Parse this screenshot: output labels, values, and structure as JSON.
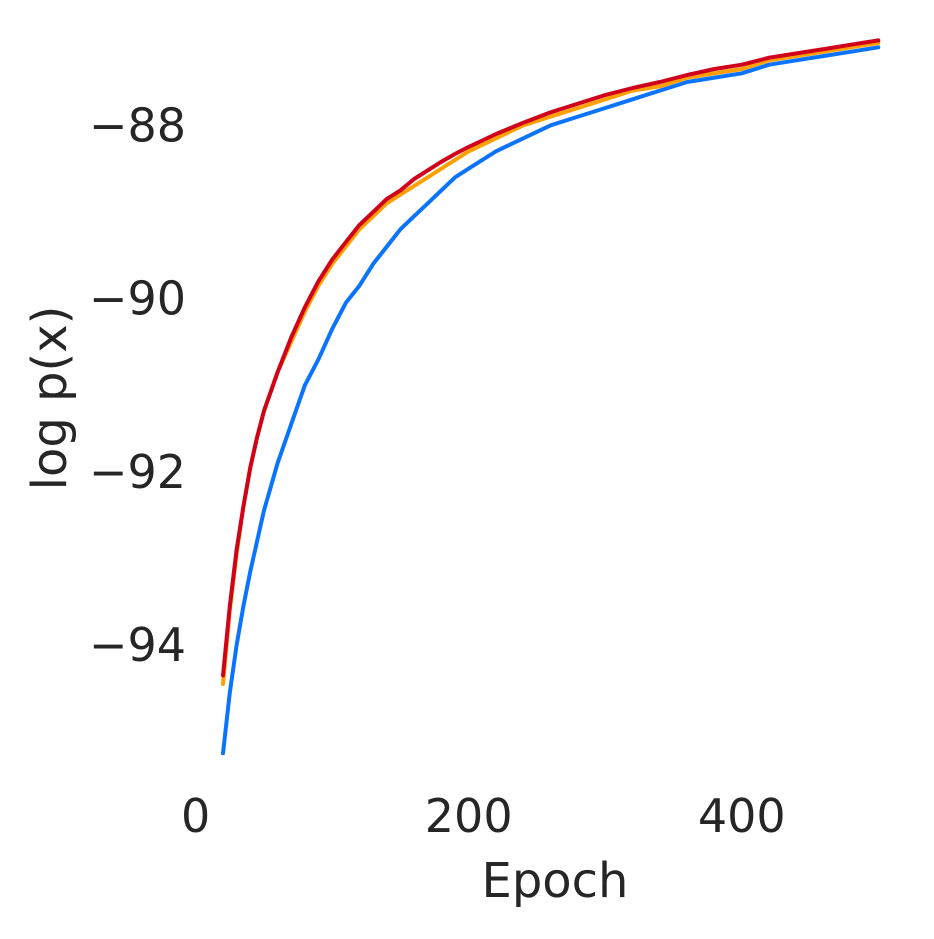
{
  "chart_data": {
    "type": "line",
    "title": "",
    "xlabel": "Epoch",
    "ylabel": "log p(x)",
    "xlim": [
      -10,
      510
    ],
    "ylim": [
      -95.5,
      -86.9
    ],
    "xticks": [
      0,
      200,
      400
    ],
    "xtick_labels": [
      "0",
      "200",
      "400"
    ],
    "yticks": [
      -88,
      -90,
      -92,
      -94
    ],
    "ytick_labels": [
      "−88",
      "−90",
      "−92",
      "−94"
    ],
    "grid": false,
    "legend": "none",
    "series": [
      {
        "color": "#0a74ff",
        "x": [
          20,
          25,
          30,
          35,
          40,
          45,
          50,
          60,
          70,
          80,
          90,
          100,
          110,
          120,
          130,
          140,
          150,
          160,
          170,
          180,
          190,
          200,
          220,
          240,
          260,
          280,
          300,
          320,
          340,
          360,
          380,
          400,
          420,
          440,
          460,
          480,
          500
        ],
        "y": [
          -95.25,
          -94.55,
          -94.0,
          -93.55,
          -93.15,
          -92.8,
          -92.45,
          -91.9,
          -91.45,
          -91.0,
          -90.7,
          -90.35,
          -90.05,
          -89.85,
          -89.6,
          -89.4,
          -89.2,
          -89.05,
          -88.9,
          -88.75,
          -88.6,
          -88.5,
          -88.3,
          -88.15,
          -88.0,
          -87.9,
          -87.8,
          -87.7,
          -87.6,
          -87.5,
          -87.45,
          -87.4,
          -87.3,
          -87.25,
          -87.2,
          -87.15,
          -87.1
        ]
      },
      {
        "color": "#ffa000",
        "x": [
          20,
          25,
          30,
          35,
          40,
          45,
          50,
          60,
          70,
          80,
          90,
          100,
          110,
          120,
          130,
          140,
          150,
          160,
          170,
          180,
          190,
          200,
          220,
          240,
          260,
          280,
          300,
          320,
          340,
          360,
          380,
          400,
          420,
          440,
          460,
          480,
          500
        ],
        "y": [
          -94.45,
          -93.6,
          -92.95,
          -92.4,
          -91.95,
          -91.6,
          -91.3,
          -90.85,
          -90.5,
          -90.15,
          -89.85,
          -89.6,
          -89.4,
          -89.2,
          -89.05,
          -88.9,
          -88.8,
          -88.7,
          -88.6,
          -88.5,
          -88.4,
          -88.3,
          -88.15,
          -88.0,
          -87.9,
          -87.8,
          -87.7,
          -87.6,
          -87.55,
          -87.45,
          -87.4,
          -87.35,
          -87.25,
          -87.2,
          -87.15,
          -87.1,
          -87.05
        ]
      },
      {
        "color": "#d0021b",
        "x": [
          20,
          25,
          30,
          35,
          40,
          45,
          50,
          60,
          70,
          80,
          90,
          100,
          110,
          120,
          130,
          140,
          150,
          160,
          170,
          180,
          190,
          200,
          220,
          240,
          260,
          280,
          300,
          320,
          340,
          360,
          380,
          400,
          420,
          440,
          460,
          480,
          500
        ],
        "y": [
          -94.35,
          -93.55,
          -92.9,
          -92.4,
          -91.95,
          -91.6,
          -91.3,
          -90.85,
          -90.45,
          -90.1,
          -89.8,
          -89.55,
          -89.35,
          -89.15,
          -89.0,
          -88.85,
          -88.75,
          -88.62,
          -88.52,
          -88.42,
          -88.33,
          -88.25,
          -88.1,
          -87.97,
          -87.85,
          -87.75,
          -87.65,
          -87.57,
          -87.5,
          -87.42,
          -87.35,
          -87.3,
          -87.22,
          -87.17,
          -87.12,
          -87.07,
          -87.02
        ]
      }
    ]
  }
}
